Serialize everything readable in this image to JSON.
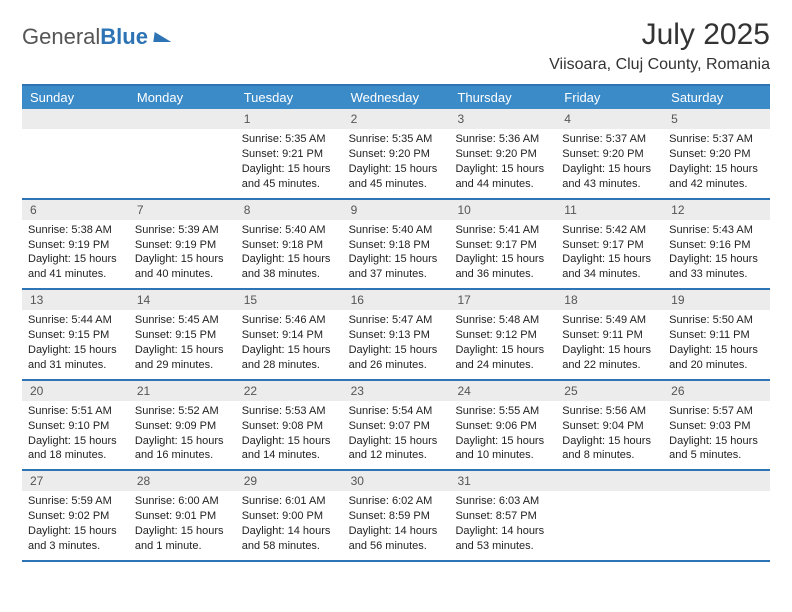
{
  "brand": {
    "word1": "General",
    "word2": "Blue"
  },
  "title": "July 2025",
  "location": "Viisoara, Cluj County, Romania",
  "colors": {
    "header_bg": "#3b8bc9",
    "border": "#2e74b5",
    "daynum_bg": "#ececec",
    "text": "#333333"
  },
  "day_names": [
    "Sunday",
    "Monday",
    "Tuesday",
    "Wednesday",
    "Thursday",
    "Friday",
    "Saturday"
  ],
  "weeks": [
    [
      {
        "n": "",
        "sr": "",
        "ss": "",
        "dl": ""
      },
      {
        "n": "",
        "sr": "",
        "ss": "",
        "dl": ""
      },
      {
        "n": "1",
        "sr": "Sunrise: 5:35 AM",
        "ss": "Sunset: 9:21 PM",
        "dl": "Daylight: 15 hours and 45 minutes."
      },
      {
        "n": "2",
        "sr": "Sunrise: 5:35 AM",
        "ss": "Sunset: 9:20 PM",
        "dl": "Daylight: 15 hours and 45 minutes."
      },
      {
        "n": "3",
        "sr": "Sunrise: 5:36 AM",
        "ss": "Sunset: 9:20 PM",
        "dl": "Daylight: 15 hours and 44 minutes."
      },
      {
        "n": "4",
        "sr": "Sunrise: 5:37 AM",
        "ss": "Sunset: 9:20 PM",
        "dl": "Daylight: 15 hours and 43 minutes."
      },
      {
        "n": "5",
        "sr": "Sunrise: 5:37 AM",
        "ss": "Sunset: 9:20 PM",
        "dl": "Daylight: 15 hours and 42 minutes."
      }
    ],
    [
      {
        "n": "6",
        "sr": "Sunrise: 5:38 AM",
        "ss": "Sunset: 9:19 PM",
        "dl": "Daylight: 15 hours and 41 minutes."
      },
      {
        "n": "7",
        "sr": "Sunrise: 5:39 AM",
        "ss": "Sunset: 9:19 PM",
        "dl": "Daylight: 15 hours and 40 minutes."
      },
      {
        "n": "8",
        "sr": "Sunrise: 5:40 AM",
        "ss": "Sunset: 9:18 PM",
        "dl": "Daylight: 15 hours and 38 minutes."
      },
      {
        "n": "9",
        "sr": "Sunrise: 5:40 AM",
        "ss": "Sunset: 9:18 PM",
        "dl": "Daylight: 15 hours and 37 minutes."
      },
      {
        "n": "10",
        "sr": "Sunrise: 5:41 AM",
        "ss": "Sunset: 9:17 PM",
        "dl": "Daylight: 15 hours and 36 minutes."
      },
      {
        "n": "11",
        "sr": "Sunrise: 5:42 AM",
        "ss": "Sunset: 9:17 PM",
        "dl": "Daylight: 15 hours and 34 minutes."
      },
      {
        "n": "12",
        "sr": "Sunrise: 5:43 AM",
        "ss": "Sunset: 9:16 PM",
        "dl": "Daylight: 15 hours and 33 minutes."
      }
    ],
    [
      {
        "n": "13",
        "sr": "Sunrise: 5:44 AM",
        "ss": "Sunset: 9:15 PM",
        "dl": "Daylight: 15 hours and 31 minutes."
      },
      {
        "n": "14",
        "sr": "Sunrise: 5:45 AM",
        "ss": "Sunset: 9:15 PM",
        "dl": "Daylight: 15 hours and 29 minutes."
      },
      {
        "n": "15",
        "sr": "Sunrise: 5:46 AM",
        "ss": "Sunset: 9:14 PM",
        "dl": "Daylight: 15 hours and 28 minutes."
      },
      {
        "n": "16",
        "sr": "Sunrise: 5:47 AM",
        "ss": "Sunset: 9:13 PM",
        "dl": "Daylight: 15 hours and 26 minutes."
      },
      {
        "n": "17",
        "sr": "Sunrise: 5:48 AM",
        "ss": "Sunset: 9:12 PM",
        "dl": "Daylight: 15 hours and 24 minutes."
      },
      {
        "n": "18",
        "sr": "Sunrise: 5:49 AM",
        "ss": "Sunset: 9:11 PM",
        "dl": "Daylight: 15 hours and 22 minutes."
      },
      {
        "n": "19",
        "sr": "Sunrise: 5:50 AM",
        "ss": "Sunset: 9:11 PM",
        "dl": "Daylight: 15 hours and 20 minutes."
      }
    ],
    [
      {
        "n": "20",
        "sr": "Sunrise: 5:51 AM",
        "ss": "Sunset: 9:10 PM",
        "dl": "Daylight: 15 hours and 18 minutes."
      },
      {
        "n": "21",
        "sr": "Sunrise: 5:52 AM",
        "ss": "Sunset: 9:09 PM",
        "dl": "Daylight: 15 hours and 16 minutes."
      },
      {
        "n": "22",
        "sr": "Sunrise: 5:53 AM",
        "ss": "Sunset: 9:08 PM",
        "dl": "Daylight: 15 hours and 14 minutes."
      },
      {
        "n": "23",
        "sr": "Sunrise: 5:54 AM",
        "ss": "Sunset: 9:07 PM",
        "dl": "Daylight: 15 hours and 12 minutes."
      },
      {
        "n": "24",
        "sr": "Sunrise: 5:55 AM",
        "ss": "Sunset: 9:06 PM",
        "dl": "Daylight: 15 hours and 10 minutes."
      },
      {
        "n": "25",
        "sr": "Sunrise: 5:56 AM",
        "ss": "Sunset: 9:04 PM",
        "dl": "Daylight: 15 hours and 8 minutes."
      },
      {
        "n": "26",
        "sr": "Sunrise: 5:57 AM",
        "ss": "Sunset: 9:03 PM",
        "dl": "Daylight: 15 hours and 5 minutes."
      }
    ],
    [
      {
        "n": "27",
        "sr": "Sunrise: 5:59 AM",
        "ss": "Sunset: 9:02 PM",
        "dl": "Daylight: 15 hours and 3 minutes."
      },
      {
        "n": "28",
        "sr": "Sunrise: 6:00 AM",
        "ss": "Sunset: 9:01 PM",
        "dl": "Daylight: 15 hours and 1 minute."
      },
      {
        "n": "29",
        "sr": "Sunrise: 6:01 AM",
        "ss": "Sunset: 9:00 PM",
        "dl": "Daylight: 14 hours and 58 minutes."
      },
      {
        "n": "30",
        "sr": "Sunrise: 6:02 AM",
        "ss": "Sunset: 8:59 PM",
        "dl": "Daylight: 14 hours and 56 minutes."
      },
      {
        "n": "31",
        "sr": "Sunrise: 6:03 AM",
        "ss": "Sunset: 8:57 PM",
        "dl": "Daylight: 14 hours and 53 minutes."
      },
      {
        "n": "",
        "sr": "",
        "ss": "",
        "dl": ""
      },
      {
        "n": "",
        "sr": "",
        "ss": "",
        "dl": ""
      }
    ]
  ]
}
